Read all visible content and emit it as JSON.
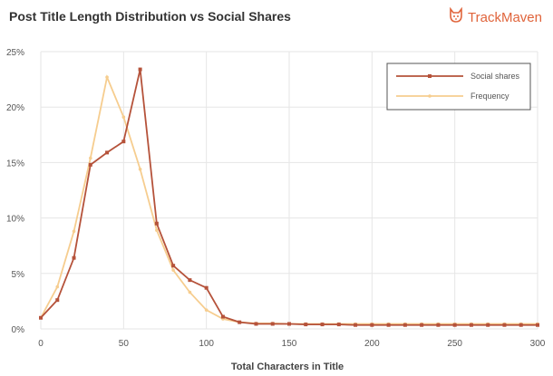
{
  "header": {
    "title": "Post Title Length Distribution vs Social Shares",
    "brand": "TrackMaven",
    "brand_icon": "fox-dog-mascot-icon"
  },
  "colors": {
    "social": "#b5523a",
    "frequency": "#f6cd8f",
    "brand": "#e0643b",
    "grid": "#e6e6e6"
  },
  "chart_data": {
    "type": "line",
    "title": "Post Title Length Distribution vs Social Shares",
    "xlabel": "Total Characters in Title",
    "ylabel": "",
    "xlim": [
      0,
      300
    ],
    "ylim": [
      0,
      25
    ],
    "xticks": [
      0,
      50,
      100,
      150,
      200,
      250,
      300
    ],
    "yticks": [
      0,
      5,
      10,
      15,
      20,
      25
    ],
    "ytick_labels": [
      "0%",
      "5%",
      "10%",
      "15%",
      "20%",
      "25%"
    ],
    "grid": true,
    "legend_position": "top-right",
    "x": [
      0,
      10,
      20,
      30,
      40,
      50,
      60,
      70,
      80,
      90,
      100,
      110,
      120,
      130,
      140,
      150,
      160,
      170,
      180,
      190,
      200,
      210,
      220,
      230,
      240,
      250,
      260,
      270,
      280,
      290,
      300
    ],
    "series": [
      {
        "name": "Social shares",
        "marker": "square",
        "values": [
          1.0,
          2.6,
          6.4,
          14.8,
          15.9,
          16.9,
          23.4,
          9.5,
          5.7,
          4.4,
          3.7,
          1.1,
          0.6,
          0.45,
          0.45,
          0.45,
          0.4,
          0.4,
          0.4,
          0.35,
          0.35,
          0.35,
          0.35,
          0.35,
          0.35,
          0.35,
          0.35,
          0.35,
          0.35,
          0.35,
          0.35
        ]
      },
      {
        "name": "Frequency",
        "marker": "circle",
        "values": [
          1.0,
          3.8,
          8.8,
          15.4,
          22.7,
          19.1,
          14.4,
          8.9,
          5.3,
          3.3,
          1.7,
          0.9,
          0.6,
          0.5,
          0.5,
          0.45,
          0.45,
          0.45,
          0.45,
          0.45,
          0.45,
          0.45,
          0.45,
          0.45,
          0.45,
          0.45,
          0.45,
          0.45,
          0.45,
          0.45,
          0.45
        ]
      }
    ]
  }
}
